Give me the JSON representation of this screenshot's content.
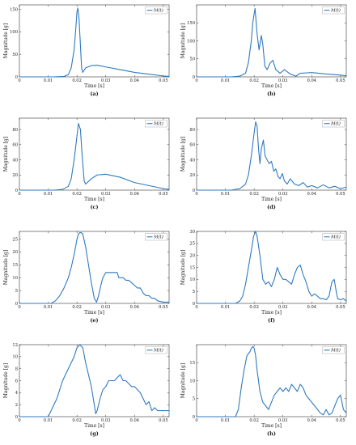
{
  "figure": {
    "line_color": "#2f7abf"
  },
  "chart_data": [
    {
      "type": "line",
      "panel_label": "(a)",
      "xlabel": "Time [s]",
      "ylabel": "Magnitude [g]",
      "xlim": [
        0,
        0.052
      ],
      "ylim": [
        0,
        160
      ],
      "xticks": [
        0,
        0.01,
        0.02,
        0.03,
        0.04,
        0.05
      ],
      "yticks": [
        0,
        50,
        100,
        150
      ],
      "legend": {
        "label": "M(t)",
        "position": "top-right"
      },
      "series": [
        {
          "name": "M(t)",
          "x": [
            0,
            0.012,
            0.0155,
            0.017,
            0.018,
            0.019,
            0.0195,
            0.02,
            0.0203,
            0.0207,
            0.0212,
            0.0216,
            0.022,
            0.023,
            0.025,
            0.027,
            0.03,
            0.035,
            0.04,
            0.045,
            0.05,
            0.052
          ],
          "y": [
            0,
            0,
            1,
            5,
            20,
            60,
            100,
            145,
            153,
            130,
            70,
            20,
            10,
            20,
            25,
            26,
            22,
            16,
            10,
            6,
            2,
            1
          ]
        }
      ]
    },
    {
      "type": "line",
      "panel_label": "(b)",
      "xlabel": "Time [s]",
      "ylabel": "Magnitude [g]",
      "xlim": [
        0,
        0.052
      ],
      "ylim": [
        0,
        200
      ],
      "xticks": [
        0,
        0.01,
        0.02,
        0.03,
        0.04,
        0.05
      ],
      "yticks": [
        0,
        50,
        100,
        150
      ],
      "legend": {
        "label": "M(t)",
        "position": "top-right"
      },
      "series": [
        {
          "name": "M(t)",
          "x": [
            0,
            0.012,
            0.015,
            0.017,
            0.018,
            0.019,
            0.0195,
            0.0203,
            0.021,
            0.0217,
            0.0225,
            0.023,
            0.0237,
            0.0245,
            0.0255,
            0.0265,
            0.0275,
            0.029,
            0.0305,
            0.0325,
            0.0345,
            0.036,
            0.04,
            0.045,
            0.05,
            0.052
          ],
          "y": [
            0,
            0,
            2,
            10,
            40,
            100,
            150,
            190,
            120,
            75,
            115,
            90,
            30,
            20,
            38,
            46,
            20,
            10,
            20,
            8,
            2,
            10,
            12,
            8,
            5,
            3
          ]
        }
      ]
    },
    {
      "type": "line",
      "panel_label": "(c)",
      "xlabel": "Time [s]",
      "ylabel": "Magnitude [g]",
      "xlim": [
        0,
        0.052
      ],
      "ylim": [
        0,
        95
      ],
      "xticks": [
        0,
        0.01,
        0.02,
        0.03,
        0.04,
        0.05
      ],
      "yticks": [
        0,
        20,
        40,
        60,
        80
      ],
      "legend": {
        "label": "M(t)",
        "position": "top-right"
      },
      "series": [
        {
          "name": "M(t)",
          "x": [
            0,
            0.012,
            0.015,
            0.017,
            0.018,
            0.019,
            0.0198,
            0.0205,
            0.0212,
            0.0218,
            0.0225,
            0.023,
            0.025,
            0.027,
            0.03,
            0.035,
            0.04,
            0.045,
            0.05,
            0.052
          ],
          "y": [
            0,
            0,
            1,
            5,
            15,
            40,
            65,
            88,
            80,
            45,
            12,
            8,
            15,
            20,
            21,
            17,
            10,
            6,
            2,
            1
          ]
        }
      ]
    },
    {
      "type": "line",
      "panel_label": "(d)",
      "xlabel": "Time [s]",
      "ylabel": "Magnitude [g]",
      "xlim": [
        0,
        0.052
      ],
      "ylim": [
        0,
        95
      ],
      "xticks": [
        0,
        0.01,
        0.02,
        0.03,
        0.04,
        0.05
      ],
      "yticks": [
        0,
        20,
        40,
        60,
        80
      ],
      "legend": {
        "label": "M(t)",
        "position": "top-right"
      },
      "series": [
        {
          "name": "M(t)",
          "x": [
            0,
            0.012,
            0.015,
            0.017,
            0.018,
            0.019,
            0.0198,
            0.0205,
            0.021,
            0.0215,
            0.022,
            0.0225,
            0.0232,
            0.0238,
            0.0245,
            0.0252,
            0.026,
            0.0268,
            0.0275,
            0.0283,
            0.029,
            0.0298,
            0.0305,
            0.0315,
            0.0325,
            0.034,
            0.0355,
            0.037,
            0.0385,
            0.04,
            0.042,
            0.044,
            0.046,
            0.048,
            0.05,
            0.052
          ],
          "y": [
            0,
            0,
            2,
            8,
            20,
            45,
            70,
            90,
            85,
            55,
            35,
            55,
            66,
            45,
            40,
            35,
            38,
            25,
            28,
            18,
            15,
            22,
            12,
            8,
            15,
            8,
            6,
            10,
            4,
            6,
            3,
            7,
            3,
            5,
            2,
            4
          ]
        }
      ]
    },
    {
      "type": "line",
      "panel_label": "(e)",
      "xlabel": "Time [s]",
      "ylabel": "Magnitude [g]",
      "xlim": [
        0,
        0.052
      ],
      "ylim": [
        0,
        28
      ],
      "xticks": [
        0,
        0.01,
        0.02,
        0.03,
        0.04,
        0.05
      ],
      "yticks": [
        0,
        5,
        10,
        15,
        20,
        25
      ],
      "legend": {
        "label": "M(t)",
        "position": "top-right"
      },
      "series": [
        {
          "name": "M(t)",
          "x": [
            0,
            0.011,
            0.0125,
            0.014,
            0.0155,
            0.017,
            0.018,
            0.019,
            0.02,
            0.0205,
            0.021,
            0.0215,
            0.022,
            0.023,
            0.024,
            0.025,
            0.026,
            0.0268,
            0.0275,
            0.0285,
            0.029,
            0.0295,
            0.03,
            0.031,
            0.0325,
            0.034,
            0.0345,
            0.036,
            0.037,
            0.038,
            0.039,
            0.04,
            0.041,
            0.042,
            0.043,
            0.044,
            0.045,
            0.046,
            0.047,
            0.048,
            0.05,
            0.052
          ],
          "y": [
            0,
            0,
            1,
            3,
            6,
            10,
            14,
            19,
            25,
            27,
            27.5,
            27.5,
            27,
            22,
            15,
            8,
            2,
            0.5,
            3,
            8,
            10,
            11,
            12,
            12,
            12,
            12,
            10,
            10,
            9,
            9,
            8,
            7,
            6,
            6,
            4,
            3,
            3,
            2,
            2,
            1,
            0.5,
            0.5
          ]
        }
      ]
    },
    {
      "type": "line",
      "panel_label": "(f)",
      "xlabel": "Time [s]",
      "ylabel": "Magnitude [g]",
      "xlim": [
        0,
        0.052
      ],
      "ylim": [
        0,
        30
      ],
      "xticks": [
        0,
        0.01,
        0.02,
        0.03,
        0.04,
        0.05
      ],
      "yticks": [
        0,
        5,
        10,
        15,
        20,
        25,
        30
      ],
      "legend": {
        "label": "M(t)",
        "position": "top-right"
      },
      "series": [
        {
          "name": "M(t)",
          "x": [
            0,
            0.0135,
            0.015,
            0.016,
            0.017,
            0.018,
            0.019,
            0.0198,
            0.0205,
            0.021,
            0.022,
            0.023,
            0.024,
            0.025,
            0.026,
            0.027,
            0.028,
            0.029,
            0.03,
            0.031,
            0.032,
            0.033,
            0.034,
            0.035,
            0.036,
            0.037,
            0.038,
            0.039,
            0.04,
            0.041,
            0.042,
            0.043,
            0.044,
            0.045,
            0.046,
            0.047,
            0.0478,
            0.0485,
            0.049,
            0.05,
            0.051,
            0.052
          ],
          "y": [
            0,
            0,
            1,
            3,
            8,
            15,
            22,
            28,
            30,
            28,
            20,
            10,
            8,
            9,
            7,
            10,
            15,
            12,
            10,
            10,
            9,
            8,
            12,
            15,
            16,
            12,
            9,
            5,
            3,
            4,
            3,
            2,
            2,
            1.5,
            3,
            9,
            10,
            5,
            2,
            1.5,
            2,
            1
          ]
        }
      ]
    },
    {
      "type": "line",
      "panel_label": "(g)",
      "xlabel": "Time [s]",
      "ylabel": "Magnitude [g]",
      "xlim": [
        0,
        0.052
      ],
      "ylim": [
        0,
        12
      ],
      "xticks": [
        0,
        0.01,
        0.02,
        0.03,
        0.04,
        0.05
      ],
      "yticks": [
        0,
        2,
        4,
        6,
        8,
        10,
        12
      ],
      "legend": {
        "label": "M(t)",
        "position": "top-right"
      },
      "series": [
        {
          "name": "M(t)",
          "x": [
            0,
            0.01,
            0.011,
            0.012,
            0.013,
            0.014,
            0.015,
            0.016,
            0.017,
            0.018,
            0.019,
            0.02,
            0.021,
            0.022,
            0.023,
            0.024,
            0.025,
            0.026,
            0.0265,
            0.027,
            0.028,
            0.029,
            0.03,
            0.031,
            0.032,
            0.033,
            0.034,
            0.035,
            0.036,
            0.037,
            0.038,
            0.039,
            0.04,
            0.041,
            0.042,
            0.043,
            0.044,
            0.045,
            0.046,
            0.047,
            0.048,
            0.049,
            0.05,
            0.052
          ],
          "y": [
            0,
            0,
            1,
            2,
            3,
            4.5,
            6,
            7,
            8,
            9,
            10,
            11.5,
            12,
            11.5,
            9,
            7,
            5,
            2,
            0.5,
            1,
            3,
            4.5,
            5,
            6,
            6,
            6,
            6.5,
            7,
            6,
            6,
            5.5,
            5,
            5,
            4.5,
            4,
            3,
            2,
            2.5,
            1,
            1.5,
            1,
            1,
            1,
            1
          ]
        }
      ]
    },
    {
      "type": "line",
      "panel_label": "(h)",
      "xlabel": "Time [s]",
      "ylabel": "Magnitude [g]",
      "xlim": [
        0,
        0.052
      ],
      "ylim": [
        0,
        20
      ],
      "xticks": [
        0,
        0.01,
        0.02,
        0.03,
        0.04,
        0.05
      ],
      "yticks": [
        0,
        5,
        10,
        15
      ],
      "legend": {
        "label": "M(t)",
        "position": "top-right"
      },
      "series": [
        {
          "name": "M(t)",
          "x": [
            0,
            0.0135,
            0.0145,
            0.0155,
            0.0165,
            0.0175,
            0.0185,
            0.019,
            0.0195,
            0.02,
            0.0205,
            0.021,
            0.022,
            0.023,
            0.024,
            0.025,
            0.026,
            0.027,
            0.028,
            0.029,
            0.03,
            0.031,
            0.032,
            0.033,
            0.034,
            0.035,
            0.036,
            0.037,
            0.038,
            0.039,
            0.04,
            0.041,
            0.042,
            0.043,
            0.044,
            0.045,
            0.046,
            0.047,
            0.048,
            0.049,
            0.05,
            0.051,
            0.052
          ],
          "y": [
            0,
            0,
            2,
            8,
            13,
            17,
            18,
            19,
            19.5,
            19,
            17,
            13,
            7,
            4,
            3,
            2,
            4,
            6,
            7,
            8,
            7,
            8,
            7,
            9,
            8,
            7,
            9,
            8,
            6,
            5,
            4,
            3,
            2,
            1,
            0.5,
            2,
            0.5,
            1,
            3,
            5,
            6,
            2,
            1
          ]
        }
      ]
    }
  ]
}
